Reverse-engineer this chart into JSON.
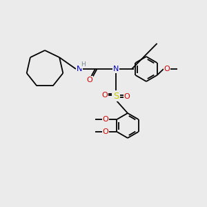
{
  "background_color": "#ebebeb",
  "atom_colors": {
    "C": "#000000",
    "N": "#0000cc",
    "O": "#cc0000",
    "S": "#cccc00",
    "H": "#6e8b8b"
  },
  "bond_lw": 1.2,
  "font_size": 7.5
}
